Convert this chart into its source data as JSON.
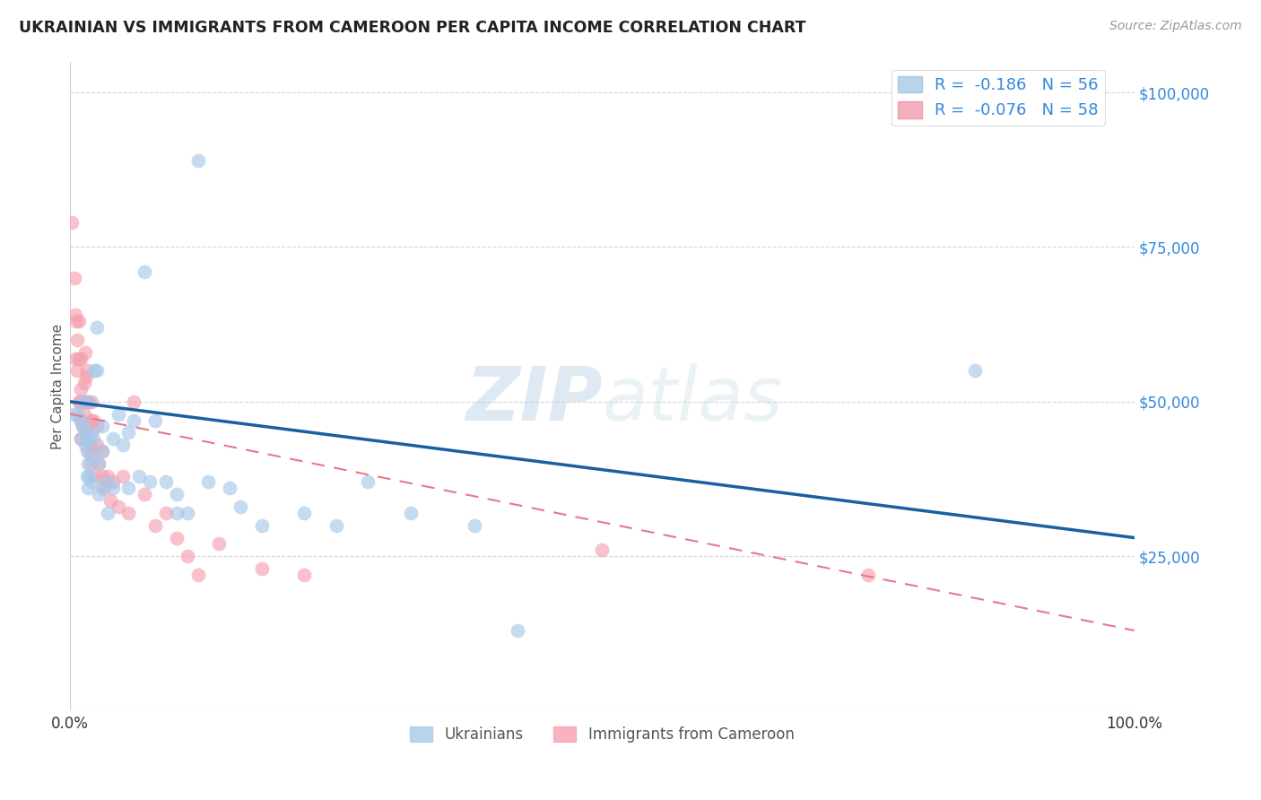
{
  "title": "UKRAINIAN VS IMMIGRANTS FROM CAMEROON PER CAPITA INCOME CORRELATION CHART",
  "source": "Source: ZipAtlas.com",
  "ylabel": "Per Capita Income",
  "watermark": "ZIPatlas",
  "blue_color": "#a8c8e8",
  "pink_color": "#f5a0b0",
  "blue_edge_color": "#7aaacc",
  "pink_edge_color": "#e07888",
  "blue_line_color": "#1a5fa0",
  "pink_line_color": "#e87888",
  "legend_entries": [
    {
      "label": "R =  -0.186   N = 56",
      "color": "#b8d4ec"
    },
    {
      "label": "R =  -0.076   N = 58",
      "color": "#f5b0c0"
    }
  ],
  "legend_labels_bottom": [
    "Ukrainians",
    "Immigrants from Cameroon"
  ],
  "yticks": [
    0,
    25000,
    50000,
    75000,
    100000
  ],
  "ytick_labels": [
    "",
    "$25,000",
    "$50,000",
    "$75,000",
    "$100,000"
  ],
  "xlim": [
    0.0,
    1.0
  ],
  "ylim": [
    0,
    105000
  ],
  "blue_trend_x0": 0.0,
  "blue_trend_y0": 50000,
  "blue_trend_x1": 1.0,
  "blue_trend_y1": 28000,
  "pink_trend_x0": 0.0,
  "pink_trend_y0": 48000,
  "pink_trend_x1": 1.0,
  "pink_trend_y1": 13000,
  "blue_x": [
    0.003,
    0.007,
    0.01,
    0.01,
    0.012,
    0.012,
    0.014,
    0.015,
    0.016,
    0.016,
    0.017,
    0.017,
    0.018,
    0.018,
    0.018,
    0.02,
    0.02,
    0.02,
    0.022,
    0.023,
    0.025,
    0.025,
    0.027,
    0.027,
    0.03,
    0.03,
    0.03,
    0.035,
    0.035,
    0.04,
    0.04,
    0.045,
    0.05,
    0.055,
    0.055,
    0.06,
    0.065,
    0.07,
    0.075,
    0.08,
    0.09,
    0.1,
    0.1,
    0.11,
    0.12,
    0.13,
    0.15,
    0.16,
    0.18,
    0.22,
    0.25,
    0.28,
    0.32,
    0.38,
    0.42,
    0.85
  ],
  "blue_y": [
    48000,
    48000,
    47000,
    44000,
    50000,
    46000,
    43000,
    45000,
    42000,
    38000,
    40000,
    36000,
    50000,
    44000,
    38000,
    45000,
    41000,
    37000,
    44000,
    55000,
    62000,
    55000,
    40000,
    35000,
    46000,
    42000,
    36000,
    37000,
    32000,
    44000,
    36000,
    48000,
    43000,
    45000,
    36000,
    47000,
    38000,
    71000,
    37000,
    47000,
    37000,
    35000,
    32000,
    32000,
    89000,
    37000,
    36000,
    33000,
    30000,
    32000,
    30000,
    37000,
    32000,
    30000,
    13000,
    55000
  ],
  "pink_x": [
    0.002,
    0.004,
    0.005,
    0.005,
    0.006,
    0.007,
    0.007,
    0.008,
    0.008,
    0.008,
    0.009,
    0.01,
    0.01,
    0.01,
    0.01,
    0.012,
    0.012,
    0.013,
    0.013,
    0.014,
    0.015,
    0.015,
    0.015,
    0.016,
    0.017,
    0.017,
    0.018,
    0.018,
    0.019,
    0.02,
    0.02,
    0.022,
    0.022,
    0.023,
    0.025,
    0.025,
    0.027,
    0.03,
    0.03,
    0.032,
    0.035,
    0.038,
    0.04,
    0.045,
    0.05,
    0.055,
    0.06,
    0.07,
    0.08,
    0.09,
    0.1,
    0.11,
    0.12,
    0.14,
    0.18,
    0.22,
    0.5,
    0.75
  ],
  "pink_y": [
    79000,
    70000,
    64000,
    57000,
    63000,
    60000,
    55000,
    63000,
    57000,
    50000,
    50000,
    57000,
    52000,
    47000,
    44000,
    50000,
    46000,
    53000,
    48000,
    58000,
    54000,
    50000,
    45000,
    55000,
    50000,
    46000,
    44000,
    42000,
    40000,
    50000,
    47000,
    47000,
    42000,
    38000,
    46000,
    43000,
    40000,
    42000,
    38000,
    36000,
    38000,
    34000,
    37000,
    33000,
    38000,
    32000,
    50000,
    35000,
    30000,
    32000,
    28000,
    25000,
    22000,
    27000,
    23000,
    22000,
    26000,
    22000
  ]
}
